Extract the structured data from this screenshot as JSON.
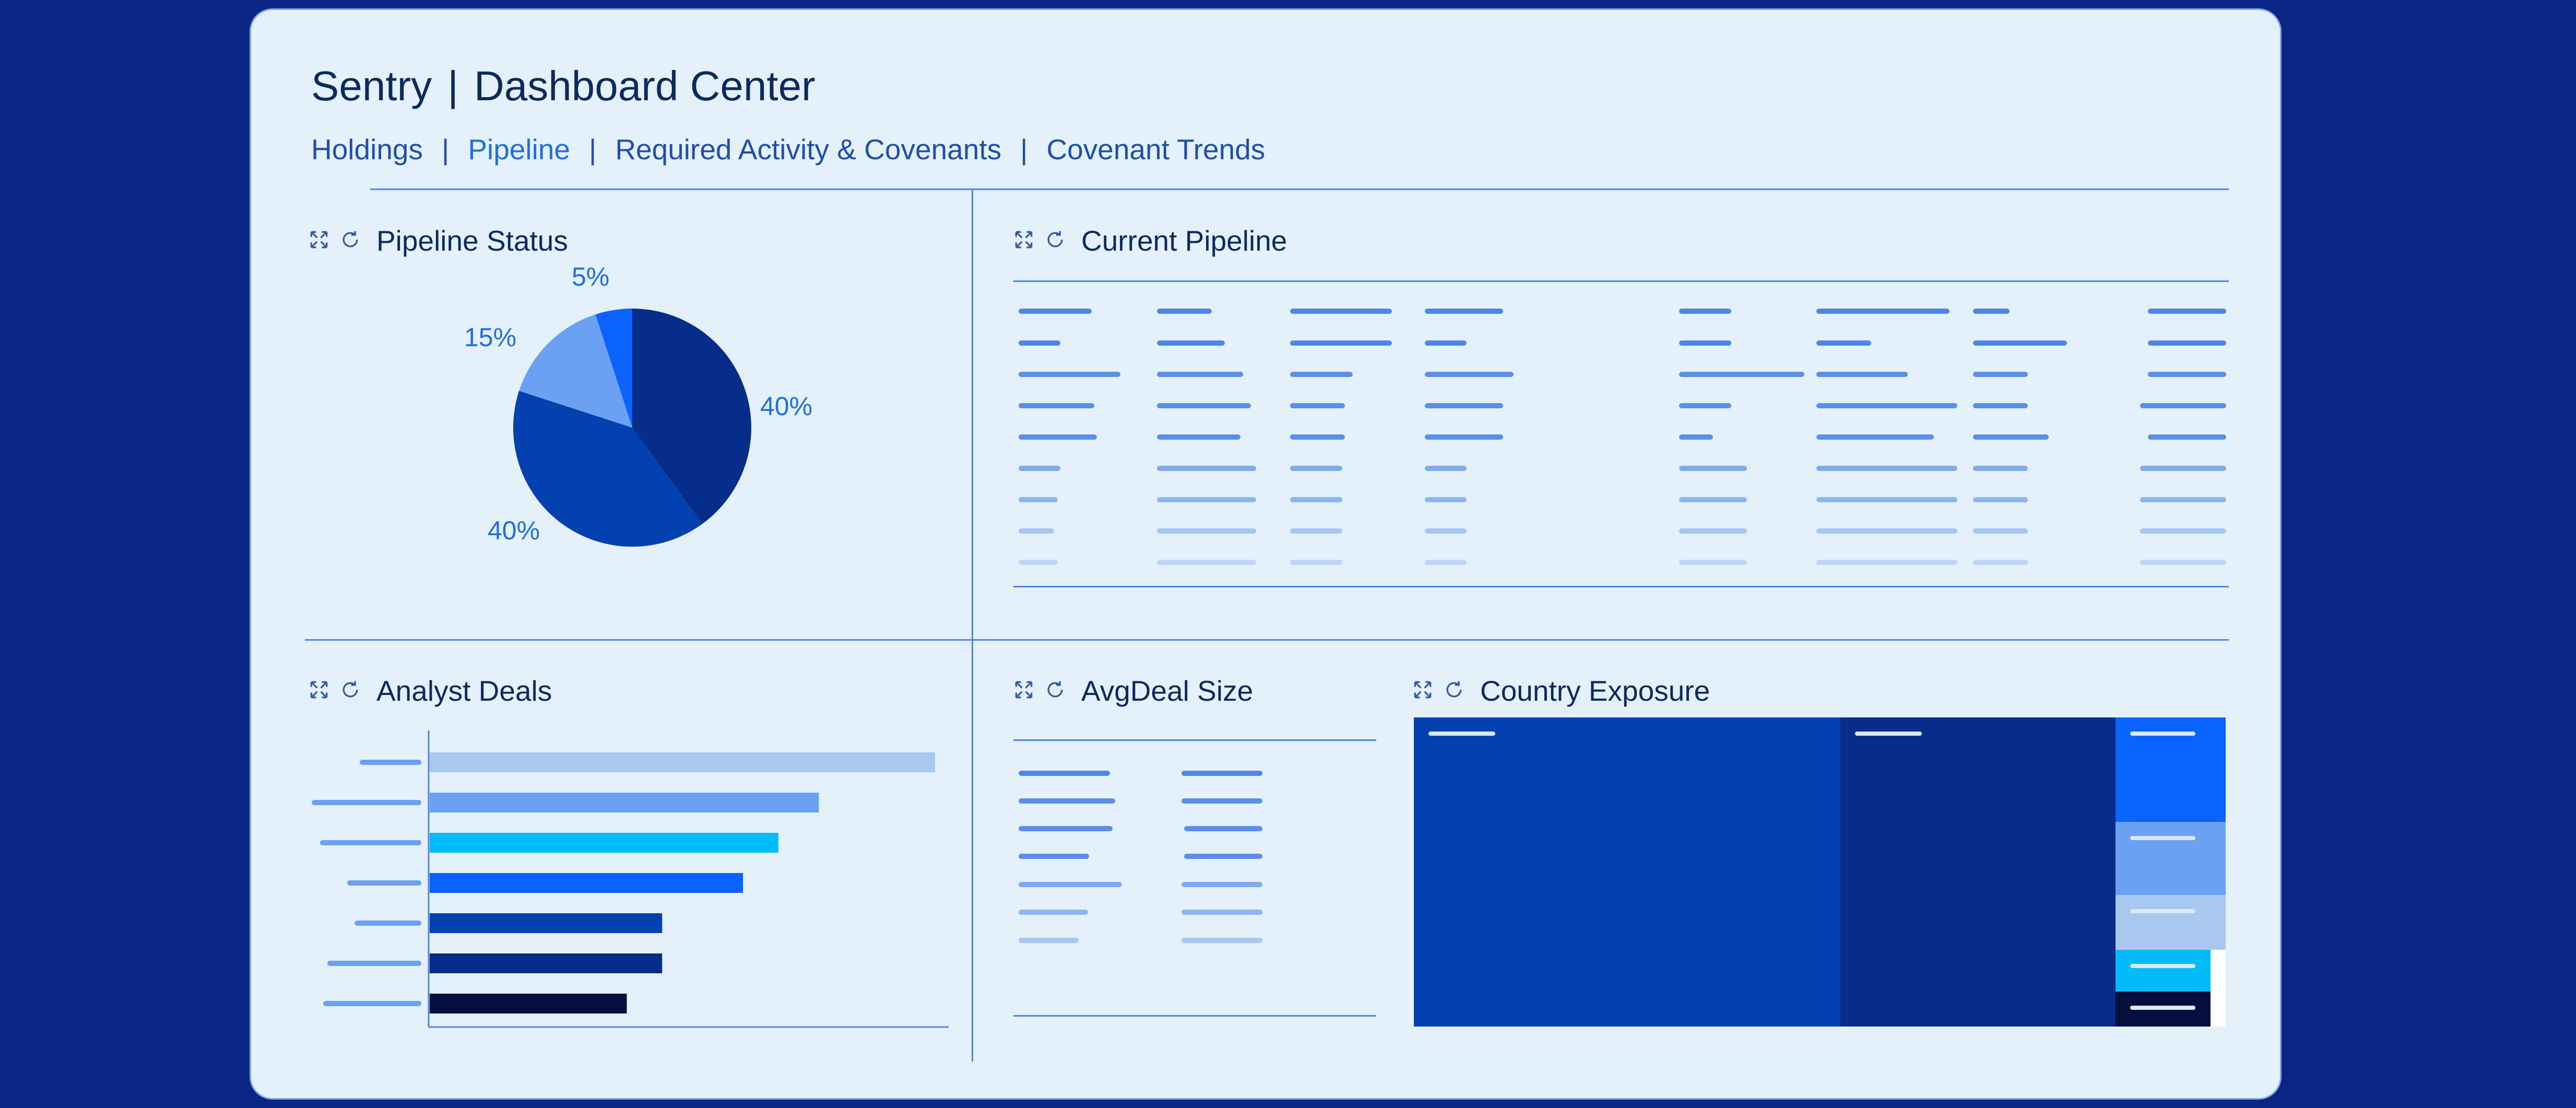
{
  "header": {
    "app_name": "Sentry",
    "separator": "|",
    "title": "Dashboard Center"
  },
  "nav": {
    "items": [
      "Holdings",
      "Pipeline",
      "Required Activity & Covenants",
      "Covenant Trends"
    ],
    "active": "Pipeline",
    "separator": "|"
  },
  "panels": {
    "pipeline_status": "Pipeline Status",
    "current_pipeline": "Current Pipeline",
    "analyst_deals": "Analyst Deals",
    "avg_deal_size": "AvgDeal Size",
    "country_exposure": "Country Exposure"
  },
  "icons": [
    "expand-icon",
    "refresh-icon"
  ],
  "colors": {
    "background": "#0b2584",
    "card": "#e4f0fa",
    "accent": "#1f6fe0",
    "navy": "#062d8a",
    "royal": "#0340b0",
    "sky": "#6aa1f3",
    "bright": "#0a62ff",
    "cyan": "#02bcf9",
    "pale": "#a9c8ef",
    "dark": "#040f3f"
  },
  "chart_data": [
    {
      "type": "pie",
      "labels": [
        "40%",
        "40%",
        "15%",
        "5%"
      ],
      "values": [
        40,
        40,
        15,
        5
      ],
      "colors": [
        "#062d8a",
        "#0340b0",
        "#6aa1f3",
        "#0a62ff"
      ]
    },
    {
      "type": "bar",
      "orientation": "horizontal",
      "values": [
        100,
        77,
        69,
        62,
        46,
        46,
        39
      ],
      "colors": [
        "#a9c8ef",
        "#6aa1f3",
        "#02bcf9",
        "#0a62ff",
        "#0340b0",
        "#062d8a",
        "#040f3f"
      ]
    },
    {
      "type": "treemap",
      "values": [
        38,
        30,
        10,
        8,
        6,
        4,
        4
      ],
      "colors": [
        "#0340b0",
        "#062d8a",
        "#0a62ff",
        "#6aa1f3",
        "#a9c8ef",
        "#02bcf9",
        "#040f3f"
      ]
    }
  ]
}
